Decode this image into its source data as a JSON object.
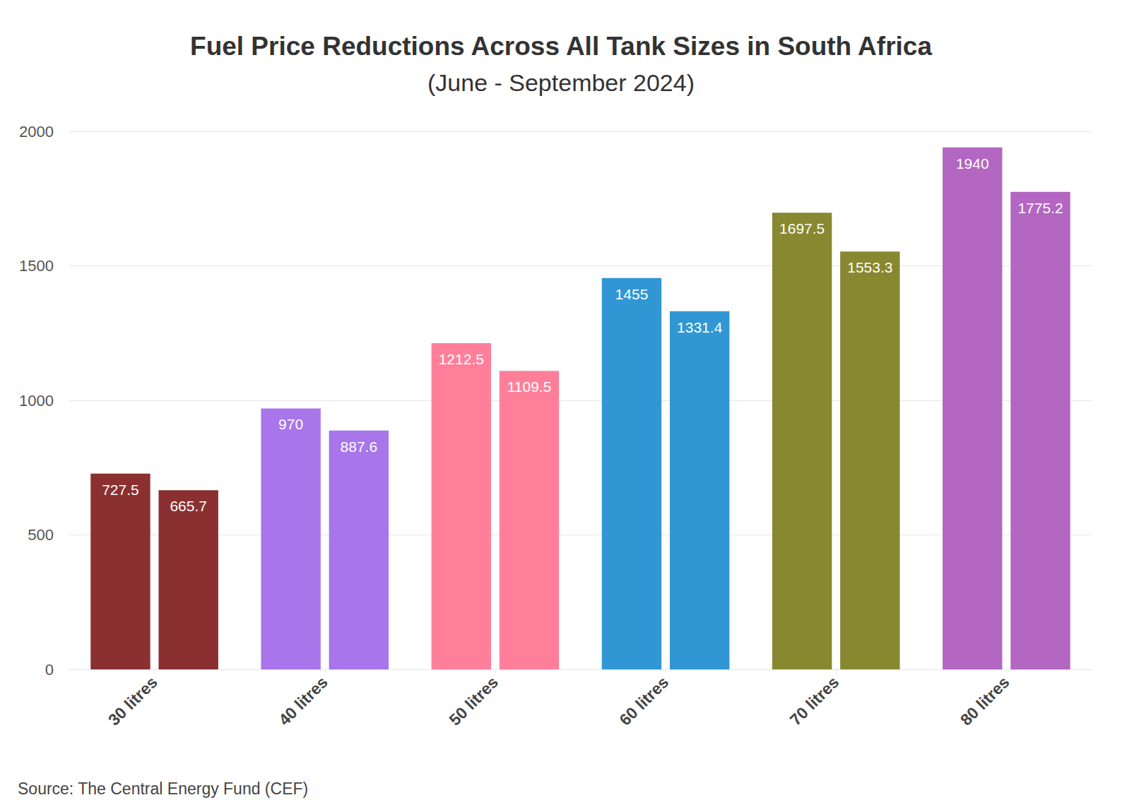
{
  "chart_data": {
    "type": "bar",
    "title": "Fuel Price Reductions Across All Tank Sizes in South Africa",
    "subtitle": "(June - September 2024)",
    "source": "Source: The Central Energy Fund (CEF)",
    "categories": [
      "30 litres",
      "40 litres",
      "50 litres",
      "60 litres",
      "70 litres",
      "80 litres"
    ],
    "series": [
      {
        "values": [
          727.5,
          970,
          1212.5,
          1455,
          1697.5,
          1940
        ],
        "colors": [
          "#8b3030",
          "#a875ea",
          "#ff7f9a",
          "#3097d4",
          "#888831",
          "#b366c2"
        ]
      },
      {
        "values": [
          665.7,
          887.6,
          1109.5,
          1331.4,
          1553.3,
          1775.2
        ],
        "colors": [
          "#8b3030",
          "#a875ea",
          "#ff7f9a",
          "#3097d4",
          "#888831",
          "#b366c2"
        ]
      }
    ],
    "ylim": [
      0,
      2000
    ],
    "yticks": [
      0,
      500,
      1000,
      1500,
      2000
    ],
    "grid": true,
    "data_labels": true
  }
}
